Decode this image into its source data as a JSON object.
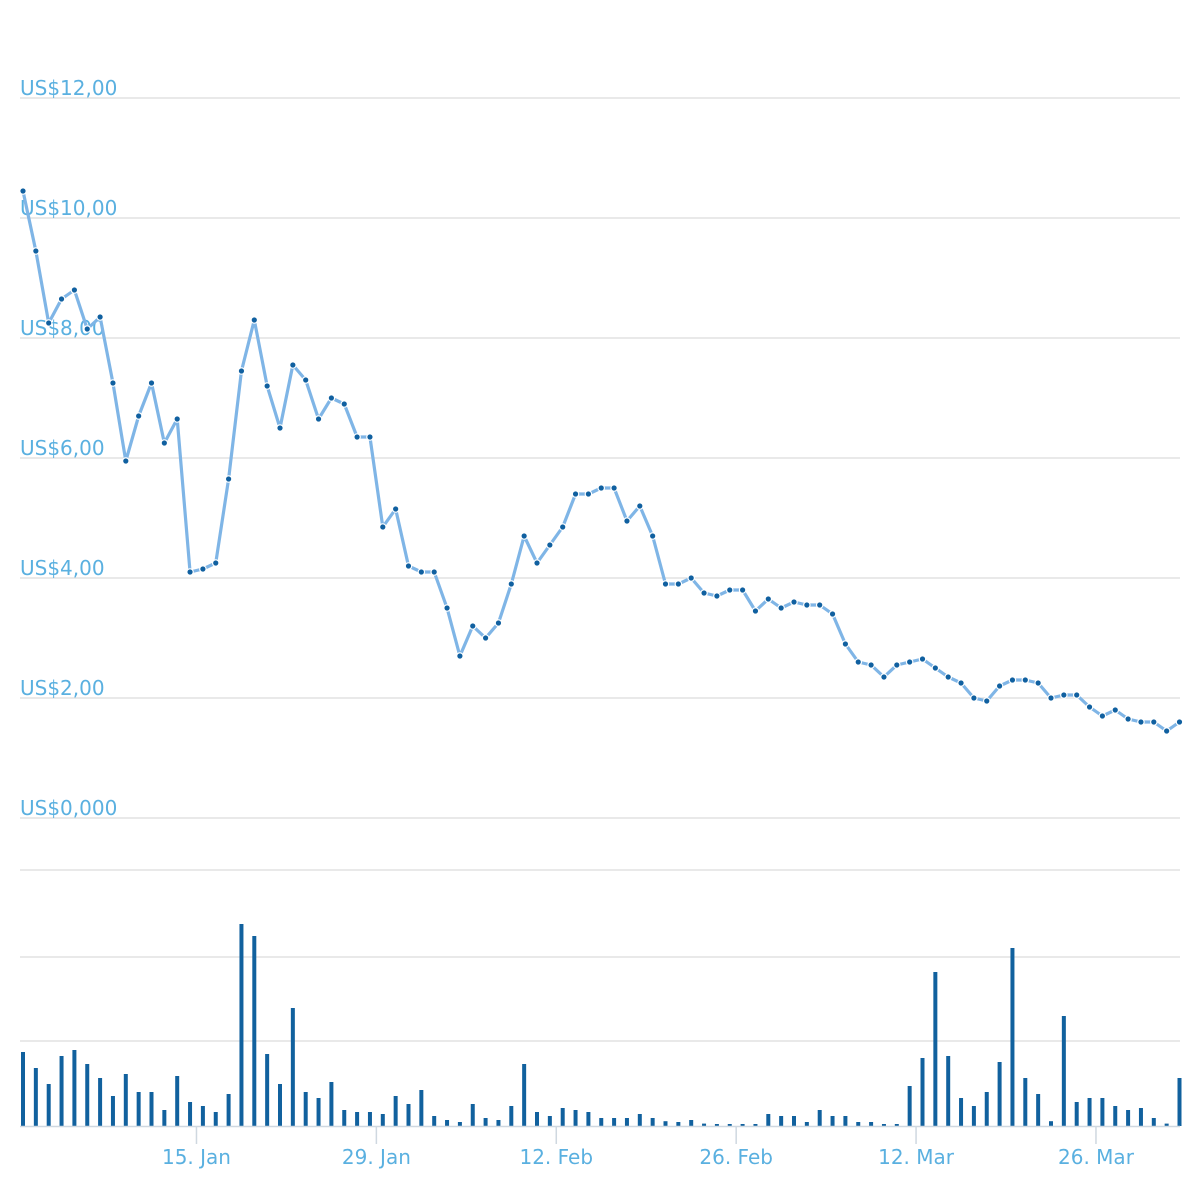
{
  "colors": {
    "line": "#7fb5e6",
    "marker": "#1060a0",
    "volume_bar": "#11619e",
    "label": "#5ab0e0",
    "grid": "#e2e2e2"
  },
  "chart_data": [
    {
      "type": "line",
      "series": [
        {
          "values": [
            10.45,
            9.45,
            8.25,
            8.65,
            8.8,
            8.15,
            8.35,
            7.25,
            5.95,
            6.7,
            7.25,
            6.25,
            6.65,
            4.1,
            4.15,
            4.25,
            5.65,
            7.45,
            8.3,
            7.2,
            6.5,
            7.55,
            7.3,
            6.65,
            7.0,
            6.9,
            6.35,
            6.35,
            4.85,
            5.15,
            4.2,
            4.1,
            4.1,
            3.5,
            2.7,
            3.2,
            3.0,
            3.25,
            3.9,
            4.7,
            4.25,
            4.55,
            4.85,
            5.4,
            5.4,
            5.5,
            5.5,
            4.95,
            5.2,
            4.7,
            3.9,
            3.9,
            4.0,
            3.75,
            3.7,
            3.8,
            3.8,
            3.45,
            3.65,
            3.5,
            3.6,
            3.55,
            3.55,
            3.4,
            2.9,
            2.6,
            2.55,
            2.35,
            2.55,
            2.6,
            2.65,
            2.5,
            2.35,
            2.25,
            2.0,
            1.95,
            2.2,
            2.3,
            2.3,
            2.25,
            2.0,
            2.05,
            2.05,
            1.85,
            1.7,
            1.8,
            1.65,
            1.6,
            1.6,
            1.45,
            1.6
          ]
        }
      ],
      "y_ticks": [
        "US$0,000",
        "US$2,00",
        "US$4,00",
        "US$6,00",
        "US$8,00",
        "US$10,00",
        "US$12,00"
      ],
      "y_tick_values": [
        0,
        2,
        4,
        6,
        8,
        10,
        12
      ],
      "ylim": [
        0,
        13.5
      ],
      "grid": true
    },
    {
      "type": "bar",
      "series": [
        {
          "values": [
            18.5,
            14.5,
            10.5,
            17.5,
            19,
            15.5,
            12,
            7.5,
            13,
            8.5,
            8.5,
            4,
            12.5,
            6,
            5,
            3.5,
            8,
            50.5,
            47.5,
            18,
            10.5,
            29.5,
            8.5,
            7,
            11,
            4,
            3.5,
            3.5,
            3,
            7.5,
            5.5,
            9,
            2.5,
            1.5,
            1,
            5.5,
            2,
            1.5,
            5,
            15.5,
            3.5,
            2.5,
            4.5,
            4,
            3.5,
            2,
            2,
            2,
            3,
            2,
            1.2,
            1,
            1.5,
            0.6,
            0.5,
            0.5,
            0.5,
            0.5,
            3,
            2.5,
            2.5,
            1,
            4,
            2.5,
            2.5,
            1,
            1,
            0.5,
            0.5,
            10,
            17,
            38.5,
            17.5,
            7,
            5,
            8.5,
            16,
            44.5,
            12,
            8,
            1.2,
            27.5,
            6,
            7,
            7,
            5,
            4,
            4.5,
            2,
            0.6,
            12
          ]
        }
      ],
      "x_ticks": [
        "15. Jan",
        "29. Jan",
        "12. Feb",
        "26. Feb",
        "12. Mar",
        "26. Mar"
      ],
      "x_tick_indices": [
        13.5,
        27.5,
        41.5,
        55.5,
        69.5,
        83.5
      ],
      "grid": true
    }
  ]
}
